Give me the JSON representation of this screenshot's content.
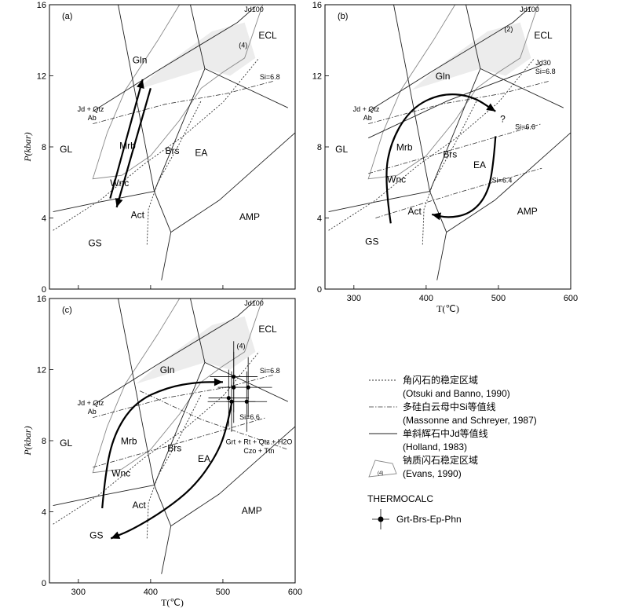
{
  "chart_data": [
    {
      "type": "phase-diagram",
      "panel_label": "(a)",
      "xlabel": "",
      "ylabel": "P(kbar)",
      "xlim": [
        260,
        600
      ],
      "ylim": [
        0,
        16
      ],
      "xticks": [],
      "yticks": [
        "0",
        "4",
        "8",
        "12",
        "16"
      ],
      "facies": [
        {
          "label": "GL",
          "x": 283,
          "y": 7.7
        },
        {
          "label": "Gln",
          "x": 385,
          "y": 12.7
        },
        {
          "label": "ECL",
          "x": 562,
          "y": 14.1
        },
        {
          "label": "Mrb",
          "x": 368,
          "y": 7.9
        },
        {
          "label": "Brs",
          "x": 430,
          "y": 7.6
        },
        {
          "label": "EA",
          "x": 470,
          "y": 7.5
        },
        {
          "label": "Wnc",
          "x": 357,
          "y": 5.8
        },
        {
          "label": "Act",
          "x": 382,
          "y": 4.0
        },
        {
          "label": "GS",
          "x": 323,
          "y": 2.4
        },
        {
          "label": "AMP",
          "x": 537,
          "y": 3.9
        }
      ],
      "annotations": [
        {
          "text": "Jd100",
          "x": 543,
          "y": 15.6
        },
        {
          "text": "(4)",
          "x": 528,
          "y": 13.6
        },
        {
          "text": "Si=6.8",
          "x": 565,
          "y": 11.8
        },
        {
          "text": "Jd + Qtz",
          "x": 317,
          "y": 10.0
        },
        {
          "text": "Ab",
          "x": 319,
          "y": 9.5
        }
      ],
      "pt_paths": [
        {
          "x": [
            344,
            389
          ],
          "y": [
            5.1,
            11.8
          ]
        },
        {
          "x": [
            400,
            353
          ],
          "y": [
            11.3,
            4.6
          ]
        }
      ]
    },
    {
      "type": "phase-diagram",
      "panel_label": "(b)",
      "xlabel": "T(℃)",
      "ylabel": "",
      "xlim": [
        260,
        600
      ],
      "ylim": [
        0,
        16
      ],
      "xticks": [
        "300",
        "400",
        "500",
        "600"
      ],
      "yticks": [
        "0",
        "4",
        "8",
        "12",
        "16"
      ],
      "facies": [
        {
          "label": "GL",
          "x": 283,
          "y": 7.7
        },
        {
          "label": "Gln",
          "x": 423,
          "y": 11.8
        },
        {
          "label": "ECL",
          "x": 562,
          "y": 14.1
        },
        {
          "label": "Mrb",
          "x": 370,
          "y": 7.8
        },
        {
          "label": "Brs",
          "x": 433,
          "y": 7.4
        },
        {
          "label": "EA",
          "x": 474,
          "y": 6.8
        },
        {
          "label": "Wnc",
          "x": 359,
          "y": 6.0
        },
        {
          "label": "Act",
          "x": 384,
          "y": 4.2
        },
        {
          "label": "GS",
          "x": 325,
          "y": 2.5
        },
        {
          "label": "AMP",
          "x": 540,
          "y": 4.2
        },
        {
          "label": "?",
          "x": 506,
          "y": 9.4
        }
      ],
      "annotations": [
        {
          "text": "Jd100",
          "x": 543,
          "y": 15.6
        },
        {
          "text": "Jd30",
          "x": 562,
          "y": 12.6
        },
        {
          "text": "(2)",
          "x": 514,
          "y": 14.5
        },
        {
          "text": "Si=6.8",
          "x": 565,
          "y": 12.1
        },
        {
          "text": "Si=6.6",
          "x": 537,
          "y": 9.0
        },
        {
          "text": "Si=6.4",
          "x": 505,
          "y": 6.0
        },
        {
          "text": "Jd + Qtz",
          "x": 317,
          "y": 10.0
        },
        {
          "text": "Ab",
          "x": 319,
          "y": 9.5
        }
      ],
      "pt_paths": [
        {
          "x": [
            351,
            342,
            352,
            380,
            420,
            462,
            496
          ],
          "y": [
            3.7,
            6.2,
            8.4,
            10.2,
            11.0,
            10.9,
            10.0
          ]
        },
        {
          "x": [
            496,
            492,
            480,
            458,
            430,
            408
          ],
          "y": [
            8.6,
            6.4,
            5.0,
            4.2,
            4.0,
            4.2
          ]
        }
      ]
    },
    {
      "type": "phase-diagram",
      "panel_label": "(c)",
      "xlabel": "T(℃)",
      "ylabel": "P(kbar)",
      "xlim": [
        260,
        600
      ],
      "ylim": [
        0,
        16
      ],
      "xticks": [
        "300",
        "400",
        "500",
        "600"
      ],
      "yticks": [
        "0",
        "4",
        "8",
        "12",
        "16"
      ],
      "facies": [
        {
          "label": "GL",
          "x": 283,
          "y": 7.7
        },
        {
          "label": "Gln",
          "x": 423,
          "y": 11.8
        },
        {
          "label": "ECL",
          "x": 562,
          "y": 14.1
        },
        {
          "label": "Mrb",
          "x": 370,
          "y": 7.8
        },
        {
          "label": "Brs",
          "x": 433,
          "y": 7.4
        },
        {
          "label": "EA",
          "x": 474,
          "y": 6.8
        },
        {
          "label": "Wnc",
          "x": 359,
          "y": 6.0
        },
        {
          "label": "Act",
          "x": 384,
          "y": 4.2
        },
        {
          "label": "GS",
          "x": 325,
          "y": 2.5
        },
        {
          "label": "AMP",
          "x": 540,
          "y": 3.9
        }
      ],
      "annotations": [
        {
          "text": "Jd100",
          "x": 543,
          "y": 15.6
        },
        {
          "text": "(4)",
          "x": 525,
          "y": 13.2
        },
        {
          "text": "Si=6.8",
          "x": 565,
          "y": 11.8
        },
        {
          "text": "Si=6.6",
          "x": 537,
          "y": 9.2
        },
        {
          "text": "Grt + Rt + Qtz + H2O",
          "x": 550,
          "y": 7.8
        },
        {
          "text": "Czo + Ttn",
          "x": 550,
          "y": 7.3
        },
        {
          "text": "Jd + Qtz",
          "x": 317,
          "y": 10.0
        },
        {
          "text": "Ab",
          "x": 319,
          "y": 9.5
        }
      ],
      "pt_paths": [
        {
          "x": [
            333,
            338,
            352,
            380,
            423,
            465,
            500
          ],
          "y": [
            4.2,
            6.5,
            8.6,
            10.2,
            11.0,
            11.3,
            11.3
          ]
        },
        {
          "x": [
            512,
            505,
            490,
            460,
            420,
            375,
            345
          ],
          "y": [
            10.1,
            8.6,
            7.1,
            5.4,
            4.1,
            3.0,
            2.5
          ]
        }
      ],
      "thermocalc_points": [
        {
          "T": 515,
          "P": 11.6,
          "T_err": 33,
          "P_err": 2.0
        },
        {
          "T": 535,
          "P": 11.0,
          "T_err": 33,
          "P_err": 1.7
        },
        {
          "T": 515,
          "P": 11.0,
          "T_err": 22,
          "P_err": 2.0
        },
        {
          "T": 508,
          "P": 10.4,
          "T_err": 28,
          "P_err": 1.6
        },
        {
          "T": 512,
          "P": 10.2,
          "T_err": 33,
          "P_err": 1.7
        },
        {
          "T": 533,
          "P": 10.2,
          "T_err": 28,
          "P_err": 1.7
        }
      ]
    }
  ],
  "legend": {
    "items": [
      {
        "line": "amphibole",
        "text1": "角闪石的稳定区域",
        "text2": "(Otsuki and Banno, 1990)"
      },
      {
        "line": "si",
        "text1": "多硅白云母中Si等值线",
        "text2": "(Massonne and Schreyer, 1987)"
      },
      {
        "line": "jd",
        "text1": "单斜辉石中Jd等值线",
        "text2": "(Holland, 1983)"
      },
      {
        "line": "gln",
        "text1": "钠质闪石稳定区域",
        "text2": "(Evans, 1990)"
      }
    ],
    "gln_symbol_label": "(4)",
    "thermocalc_title": "THERMOCALC",
    "thermocalc_item": "Grt-Brs-Ep-Phn"
  }
}
